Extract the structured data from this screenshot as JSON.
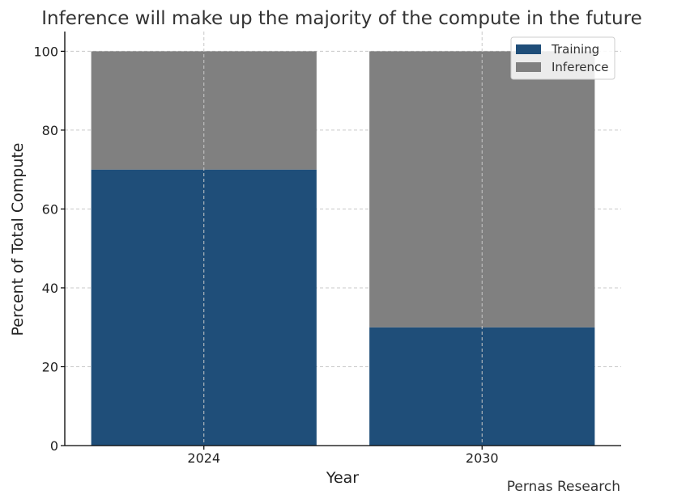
{
  "chart_data": {
    "type": "bar",
    "stacked": true,
    "title": "Inference will make up the majority of the compute in the future",
    "xlabel": "Year",
    "ylabel": "Percent of Total Compute",
    "categories": [
      "2024",
      "2030"
    ],
    "series": [
      {
        "name": "Training",
        "values": [
          70,
          30
        ],
        "color": "#1f4e79"
      },
      {
        "name": "Inference",
        "values": [
          30,
          70
        ],
        "color": "#808080"
      }
    ],
    "ylim": [
      0,
      105
    ],
    "yticks": [
      0,
      20,
      40,
      60,
      80,
      100
    ],
    "grid": true,
    "legend_position": "top-right",
    "source": "Pernas Research"
  }
}
